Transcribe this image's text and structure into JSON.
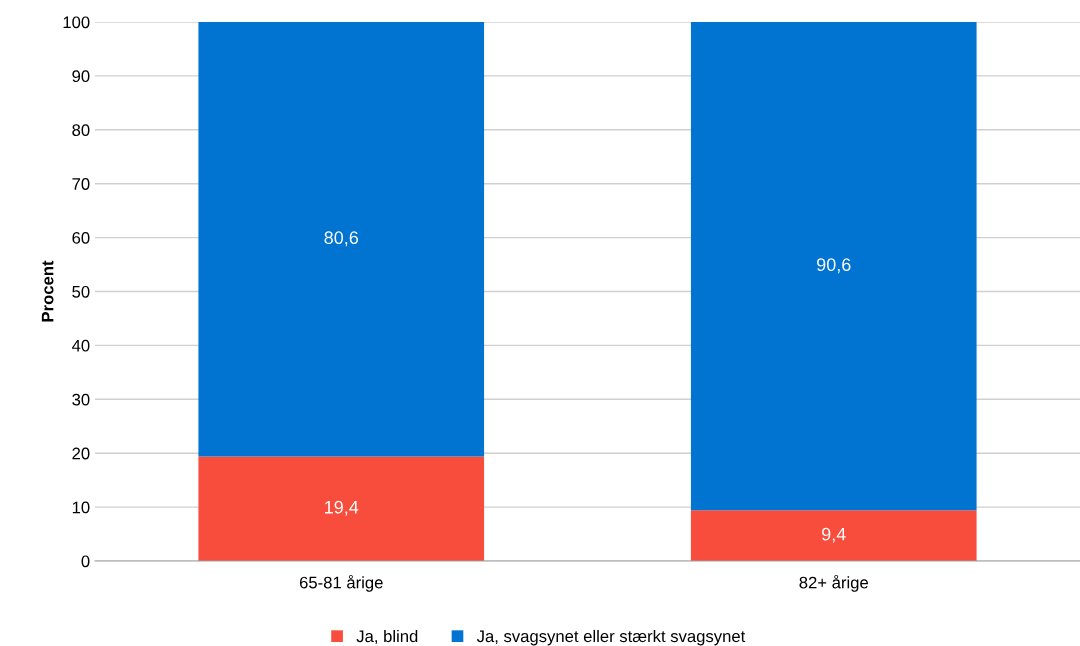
{
  "chart_data": {
    "type": "bar",
    "stacked": true,
    "ylabel": "Procent",
    "categories": [
      "65-81 årige",
      "82+ årige"
    ],
    "series": [
      {
        "name": "Ja, blind",
        "color": "#f84c3c",
        "values": [
          19.4,
          9.4
        ],
        "value_labels": [
          "19,4",
          "9,4"
        ]
      },
      {
        "name": "Ja, svagsynet eller stærkt svagsynet",
        "color": "#0074d0",
        "values": [
          80.6,
          90.6
        ],
        "value_labels": [
          "80,6",
          "90,6"
        ]
      }
    ],
    "ylim": [
      0,
      100
    ],
    "yticks": [
      0,
      10,
      20,
      30,
      40,
      50,
      60,
      70,
      80,
      90,
      100
    ],
    "grid": "y",
    "legend": "bottom"
  }
}
